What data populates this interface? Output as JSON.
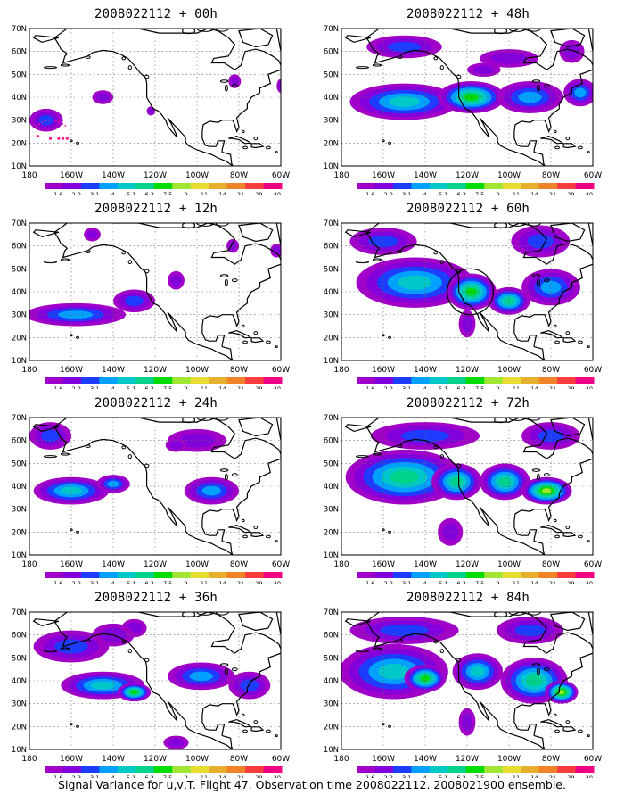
{
  "panels": [
    {
      "title": "2008022112 + 00h",
      "lead": "00h"
    },
    {
      "title": "2008022112 + 48h",
      "lead": "48h"
    },
    {
      "title": "2008022112 + 12h",
      "lead": "12h"
    },
    {
      "title": "2008022112 + 60h",
      "lead": "60h"
    },
    {
      "title": "2008022112 + 24h",
      "lead": "24h"
    },
    {
      "title": "2008022112 + 72h",
      "lead": "72h"
    },
    {
      "title": "2008022112 + 36h",
      "lead": "36h"
    },
    {
      "title": "2008022112 + 84h",
      "lead": "84h"
    }
  ],
  "lat_labels": [
    "70N",
    "60N",
    "50N",
    "40N",
    "30N",
    "20N",
    "10N"
  ],
  "lon_labels": [
    "180",
    "160W",
    "140W",
    "120W",
    "100W",
    "80W",
    "60W"
  ],
  "colorbar": {
    "labels": [
      "1.6",
      "2.2",
      "3.1",
      "4",
      "5.1",
      "6.3",
      "7.5",
      "9",
      "11",
      "14",
      "21",
      "29",
      "40"
    ],
    "colors": [
      "#a000c8",
      "#8200dc",
      "#1e3cff",
      "#00a0ff",
      "#00c8c8",
      "#00d28c",
      "#00dc00",
      "#a0e632",
      "#e6dc32",
      "#e6af2d",
      "#f08228",
      "#fa3c3c",
      "#f00082"
    ]
  },
  "caption": "Signal Variance for u,v,T. Flight 47. Observation time 2008022112. 2008021900 ensemble.",
  "chart_data": {
    "type": "heatmap",
    "variable": "Signal Variance for u,v,T",
    "lat_range": [
      10,
      70
    ],
    "lon_range": [
      -180,
      -60
    ],
    "levels": [
      1.6,
      2.2,
      3.1,
      4,
      5.1,
      6.3,
      7.5,
      9,
      11,
      14,
      21,
      29,
      40
    ],
    "panels": [
      {
        "lead_hours": 0,
        "blobs": [
          [
            -172,
            30,
            8,
            5,
            1.0
          ],
          [
            -145,
            40,
            5,
            3,
            0.6
          ],
          [
            -82,
            47,
            3,
            3,
            0.6
          ],
          [
            -60,
            45,
            2,
            3,
            0.5
          ],
          [
            -122,
            34,
            2,
            2,
            0.5
          ]
        ]
      },
      {
        "lead_hours": 48,
        "blobs": [
          [
            -150,
            38,
            26,
            8,
            1.6
          ],
          [
            -118,
            40,
            16,
            7,
            2.4
          ],
          [
            -90,
            40,
            16,
            7,
            1.4
          ],
          [
            -66,
            42,
            8,
            6,
            1.2
          ],
          [
            -150,
            62,
            18,
            5,
            0.9
          ],
          [
            -100,
            57,
            14,
            4,
            0.7
          ],
          [
            -70,
            60,
            6,
            5,
            0.7
          ],
          [
            -112,
            52,
            8,
            3,
            0.5
          ]
        ]
      },
      {
        "lead_hours": 12,
        "blobs": [
          [
            -158,
            30,
            24,
            5,
            1.3
          ],
          [
            -130,
            36,
            10,
            5,
            1.1
          ],
          [
            -110,
            45,
            4,
            4,
            0.6
          ],
          [
            -83,
            60,
            3,
            3,
            0.6
          ],
          [
            -150,
            65,
            4,
            3,
            0.5
          ],
          [
            -62,
            58,
            3,
            3,
            0.5
          ]
        ]
      },
      {
        "lead_hours": 60,
        "blobs": [
          [
            -145,
            44,
            28,
            11,
            1.8
          ],
          [
            -118,
            40,
            12,
            8,
            2.4
          ],
          [
            -100,
            36,
            10,
            6,
            2.0
          ],
          [
            -80,
            42,
            14,
            8,
            1.4
          ],
          [
            -120,
            26,
            4,
            6,
            0.6
          ],
          [
            -160,
            62,
            16,
            6,
            0.9
          ],
          [
            -85,
            62,
            14,
            7,
            0.9
          ]
        ]
      },
      {
        "lead_hours": 72,
        "blobs": [
          [
            -150,
            44,
            28,
            12,
            1.9
          ],
          [
            -125,
            42,
            12,
            8,
            2.0
          ],
          [
            -102,
            42,
            12,
            8,
            2.0
          ],
          [
            -82,
            38,
            12,
            6,
            2.6
          ],
          [
            -140,
            62,
            26,
            6,
            1.0
          ],
          [
            -80,
            62,
            14,
            6,
            0.9
          ],
          [
            -128,
            20,
            6,
            6,
            0.6
          ]
        ]
      },
      {
        "lead_hours": 24,
        "blobs": [
          [
            -160,
            38,
            18,
            6,
            1.6
          ],
          [
            -140,
            41,
            8,
            4,
            1.4
          ],
          [
            -93,
            38,
            13,
            6,
            1.3
          ],
          [
            -170,
            62,
            10,
            6,
            0.9
          ],
          [
            -100,
            60,
            14,
            5,
            0.8
          ],
          [
            -110,
            58,
            5,
            3,
            0.6
          ]
        ]
      },
      {
        "lead_hours": 84,
        "blobs": [
          [
            -155,
            44,
            26,
            12,
            1.8
          ],
          [
            -140,
            41,
            10,
            6,
            2.3
          ],
          [
            -115,
            44,
            12,
            8,
            1.7
          ],
          [
            -88,
            40,
            16,
            10,
            1.9
          ],
          [
            -75,
            35,
            8,
            5,
            2.5
          ],
          [
            -150,
            62,
            26,
            6,
            1.0
          ],
          [
            -90,
            62,
            16,
            6,
            1.0
          ],
          [
            -120,
            22,
            4,
            6,
            0.6
          ]
        ]
      },
      {
        "lead_hours": 36,
        "blobs": [
          [
            -160,
            55,
            18,
            7,
            1.0
          ],
          [
            -145,
            38,
            20,
            6,
            1.5
          ],
          [
            -130,
            35,
            8,
            4,
            2.2
          ],
          [
            -98,
            42,
            16,
            6,
            1.4
          ],
          [
            -75,
            38,
            10,
            6,
            1.1
          ],
          [
            -130,
            63,
            6,
            4,
            0.7
          ],
          [
            -110,
            13,
            6,
            3,
            0.8
          ],
          [
            -140,
            60,
            10,
            5,
            0.8
          ]
        ]
      }
    ]
  }
}
